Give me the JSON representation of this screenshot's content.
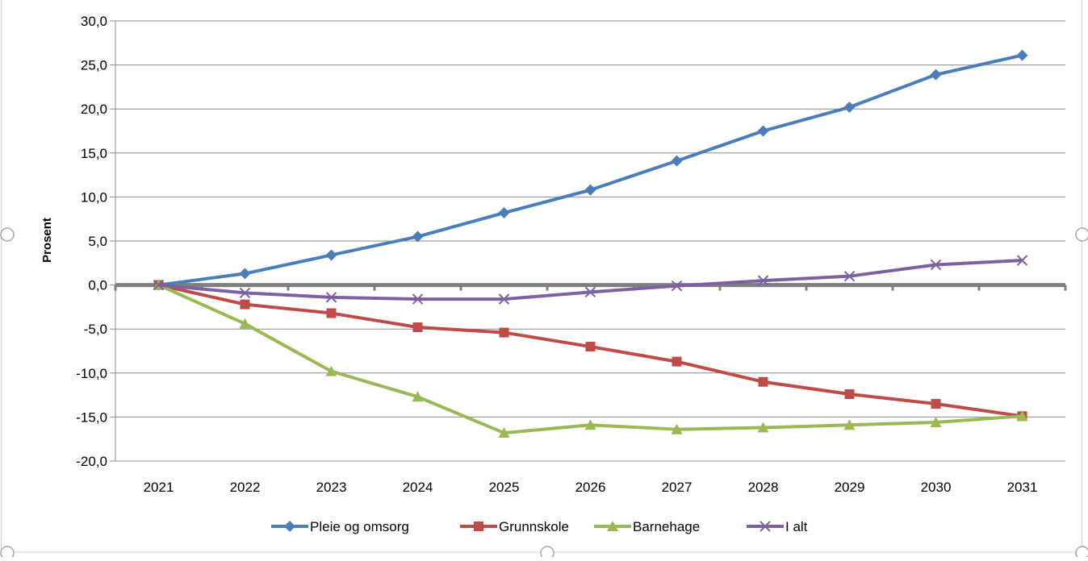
{
  "chart_data": {
    "type": "line",
    "title": "",
    "xlabel": "",
    "ylabel": "Prosent",
    "categories": [
      "2021",
      "2022",
      "2023",
      "2024",
      "2025",
      "2026",
      "2027",
      "2028",
      "2029",
      "2030",
      "2031"
    ],
    "ylim": [
      -20,
      30
    ],
    "yticks": [
      30,
      25,
      20,
      15,
      10,
      5,
      0,
      -5,
      -10,
      -15,
      -20
    ],
    "ytick_labels": [
      "30,0",
      "25,0",
      "20,0",
      "15,0",
      "10,0",
      "5,0",
      "0,0",
      "-5,0",
      "-10,0",
      "-15,0",
      "-20,0"
    ],
    "grid": true,
    "legend_position": "bottom",
    "series": [
      {
        "name": "Pleie og omsorg",
        "color": "#4a7ebb",
        "marker": "diamond",
        "values": [
          0.0,
          1.3,
          3.4,
          5.5,
          8.2,
          10.8,
          14.1,
          17.5,
          20.2,
          23.9,
          26.1
        ]
      },
      {
        "name": "Grunnskole",
        "color": "#be4b48",
        "marker": "square",
        "values": [
          0.0,
          -2.2,
          -3.2,
          -4.8,
          -5.4,
          -7.0,
          -8.7,
          -11.0,
          -12.4,
          -13.5,
          -14.9
        ]
      },
      {
        "name": "Barnehage",
        "color": "#98b954",
        "marker": "triangle",
        "values": [
          0.0,
          -4.4,
          -9.8,
          -12.7,
          -16.8,
          -15.9,
          -16.4,
          -16.2,
          -15.9,
          -15.6,
          -14.9
        ]
      },
      {
        "name": "I alt",
        "color": "#7d60a0",
        "marker": "x",
        "values": [
          0.0,
          -0.9,
          -1.4,
          -1.6,
          -1.6,
          -0.8,
          -0.1,
          0.5,
          1.0,
          2.3,
          2.8
        ]
      }
    ]
  }
}
